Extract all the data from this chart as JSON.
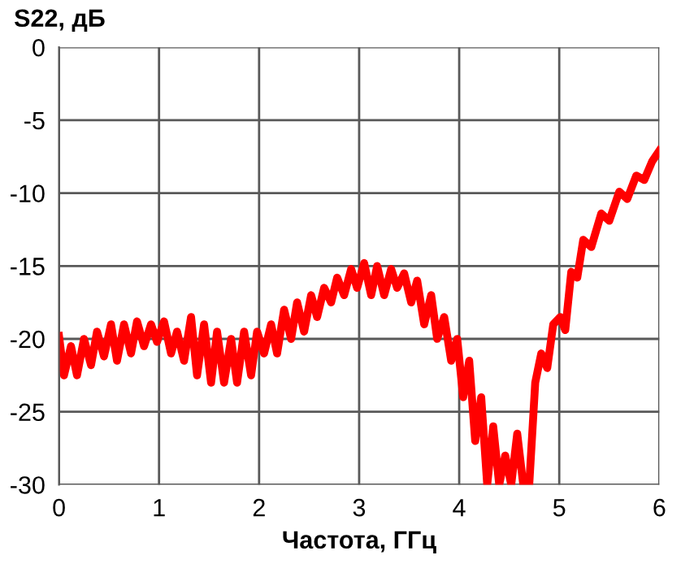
{
  "chart_data": {
    "type": "line",
    "title": "S22, дБ",
    "xlabel": "Частота, ГГц",
    "xlim": [
      0,
      6
    ],
    "xticks": [
      0,
      1,
      2,
      3,
      4,
      5,
      6
    ],
    "ylim": [
      -30,
      0
    ],
    "yticks": [
      {
        "value": -30,
        "label": "-30"
      },
      {
        "value": -25,
        "label": "-25"
      },
      {
        "value": -20,
        "label": "-20"
      },
      {
        "value": -15,
        "label": "-15"
      },
      {
        "value": -10,
        "label": "-10"
      },
      {
        "value": -5,
        "label": "-5"
      },
      0
    ],
    "grid": true,
    "legend": false,
    "marker": "none",
    "line_style": "solid",
    "series": [
      {
        "color": "#ff0000",
        "x": [
          0,
          0.05,
          0.12,
          0.18,
          0.25,
          0.32,
          0.38,
          0.45,
          0.52,
          0.58,
          0.65,
          0.72,
          0.78,
          0.85,
          0.92,
          0.98,
          1.05,
          1.12,
          1.18,
          1.25,
          1.32,
          1.38,
          1.45,
          1.52,
          1.58,
          1.65,
          1.72,
          1.78,
          1.85,
          1.92,
          1.98,
          2.05,
          2.12,
          2.18,
          2.25,
          2.32,
          2.38,
          2.45,
          2.52,
          2.58,
          2.65,
          2.72,
          2.78,
          2.85,
          2.92,
          2.98,
          3.05,
          3.12,
          3.18,
          3.25,
          3.32,
          3.38,
          3.45,
          3.52,
          3.58,
          3.65,
          3.72,
          3.78,
          3.85,
          3.92,
          3.98,
          4.04,
          4.1,
          4.16,
          4.22,
          4.28,
          4.34,
          4.4,
          4.46,
          4.52,
          4.58,
          4.64,
          4.7,
          4.76,
          4.82,
          4.88,
          4.94,
          5.01,
          5.06,
          5.12,
          5.18,
          5.24,
          5.32,
          5.42,
          5.5,
          5.6,
          5.68,
          5.77,
          5.85,
          5.93,
          6
        ],
        "values": [
          -19.8,
          -22.5,
          -20.5,
          -22.5,
          -20,
          -21.8,
          -19.5,
          -21.2,
          -19,
          -21.5,
          -19,
          -21,
          -18.8,
          -20.5,
          -19,
          -20.2,
          -18.8,
          -21,
          -19.5,
          -21.5,
          -18.5,
          -22.5,
          -19,
          -23,
          -19.5,
          -23,
          -20,
          -23,
          -19.5,
          -22.5,
          -19.5,
          -21,
          -19,
          -21,
          -18,
          -20,
          -17.5,
          -19.5,
          -17,
          -18.5,
          -16.5,
          -17.5,
          -15.8,
          -17,
          -15.2,
          -16.5,
          -14.8,
          -17,
          -15,
          -17,
          -15.2,
          -16.5,
          -15.5,
          -17.5,
          -16,
          -19,
          -17,
          -20,
          -18.5,
          -21.5,
          -20,
          -24,
          -21.5,
          -27,
          -24,
          -30,
          -26,
          -30,
          -28,
          -30,
          -26.5,
          -30,
          -30,
          -23,
          -21,
          -22,
          -19,
          -18.5,
          -19.4,
          -15.4,
          -15.8,
          -13.2,
          -13.7,
          -11.4,
          -11.9,
          -9.9,
          -10.4,
          -8.8,
          -9.1,
          -7.8,
          -7.1
        ]
      }
    ]
  }
}
